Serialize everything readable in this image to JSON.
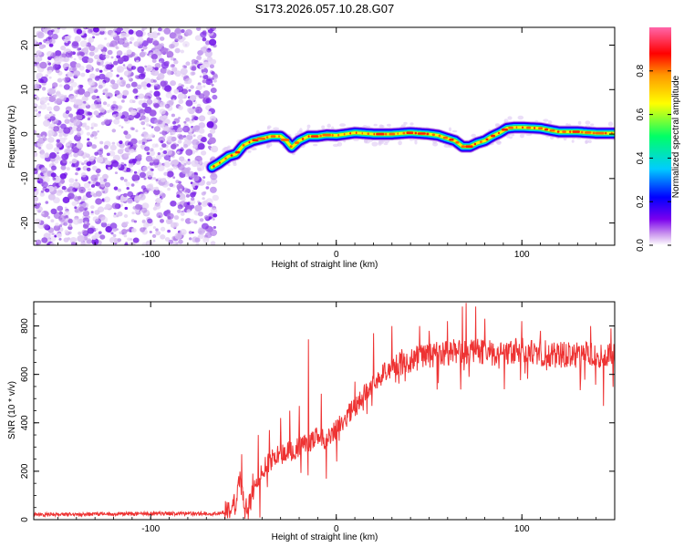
{
  "chart_data": [
    {
      "type": "heatmap",
      "title": "S173.2026.057.10.28.G07",
      "xlabel": "Height of straight line (km)",
      "ylabel": "Frequency (Hz)",
      "xlim": [
        -163,
        150
      ],
      "ylim": [
        -25,
        24
      ],
      "x_ticks": [
        -100,
        0,
        100
      ],
      "x_tick_labels": [
        "-100",
        "0",
        "100"
      ],
      "y_ticks": [
        -20,
        -10,
        0,
        10,
        20
      ],
      "y_tick_labels": [
        "-20",
        "-10",
        "0",
        "10",
        "20"
      ],
      "noise_region_x": [
        -163,
        -67
      ],
      "ridge": {
        "x": [
          -67,
          -63,
          -58,
          -54,
          -50,
          -45,
          -40,
          -35,
          -30,
          -27,
          -24,
          -20,
          -15,
          -10,
          -5,
          0,
          10,
          20,
          30,
          40,
          50,
          55,
          60,
          64,
          68,
          72,
          76,
          80,
          84,
          88,
          92,
          96,
          100,
          110,
          120,
          130,
          140,
          150
        ],
        "frequency": [
          -7.5,
          -6.5,
          -5.0,
          -4.5,
          -2.5,
          -1.5,
          -1.0,
          -0.5,
          -0.5,
          -1.5,
          -3.0,
          -1.5,
          -0.5,
          -0.5,
          -0.2,
          -0.3,
          0.3,
          0.0,
          0.0,
          0.3,
          0.0,
          -0.3,
          -1.0,
          -1.5,
          -2.8,
          -2.8,
          -2.0,
          -1.5,
          -0.5,
          0.3,
          1.3,
          1.5,
          1.5,
          1.3,
          0.5,
          0.5,
          0.2,
          0.2
        ]
      },
      "colorbar": {
        "label": "Normalized spectral amplitude",
        "range": [
          0.0,
          1.0
        ],
        "ticks": [
          "0.0",
          "0.2",
          "0.4",
          "0.6",
          "0.8"
        ],
        "colors": [
          "#ffffff",
          "#cc99ee",
          "#7a00ee",
          "#0000ff",
          "#00ccff",
          "#00ff66",
          "#ffff00",
          "#ff9900",
          "#ff0000",
          "#ff66aa"
        ]
      }
    },
    {
      "type": "line",
      "title": "",
      "xlabel": "Height of straight line (km)",
      "ylabel": "SNR (10 * v/v)",
      "xlim": [
        -163,
        150
      ],
      "ylim": [
        0,
        900
      ],
      "x_ticks": [
        -100,
        0,
        100
      ],
      "x_tick_labels": [
        "-100",
        "0",
        "100"
      ],
      "y_ticks": [
        0,
        200,
        400,
        600,
        800
      ],
      "y_tick_labels": [
        "0",
        "200",
        "400",
        "600",
        "800"
      ],
      "color": "#ee3333",
      "trend": {
        "x": [
          -163,
          -100,
          -65,
          -58,
          -54,
          -52,
          -50,
          -47,
          -44,
          -40,
          -35,
          -30,
          -25,
          -20,
          -15,
          -10,
          -5,
          0,
          5,
          10,
          15,
          20,
          25,
          30,
          40,
          50,
          60,
          70,
          80,
          90,
          100,
          110,
          120,
          130,
          140,
          150
        ],
        "y": [
          20,
          25,
          25,
          35,
          70,
          160,
          90,
          60,
          130,
          200,
          250,
          270,
          280,
          300,
          320,
          340,
          330,
          380,
          420,
          460,
          520,
          560,
          600,
          640,
          660,
          680,
          690,
          700,
          690,
          690,
          700,
          690,
          680,
          680,
          680,
          680
        ]
      },
      "spikes": [
        {
          "x": -51,
          "y": 270
        },
        {
          "x": -45,
          "y": 190
        },
        {
          "x": -42,
          "y": 350
        },
        {
          "x": -36,
          "y": 370
        },
        {
          "x": -30,
          "y": 420
        },
        {
          "x": -25,
          "y": 450
        },
        {
          "x": -20,
          "y": 470
        },
        {
          "x": -15,
          "y": 745
        },
        {
          "x": -8,
          "y": 520
        },
        {
          "x": 10,
          "y": 570
        },
        {
          "x": 20,
          "y": 770
        },
        {
          "x": 30,
          "y": 800
        },
        {
          "x": 45,
          "y": 800
        },
        {
          "x": 50,
          "y": 780
        },
        {
          "x": 60,
          "y": 820
        },
        {
          "x": 68,
          "y": 880
        },
        {
          "x": 70,
          "y": 895
        },
        {
          "x": 75,
          "y": 880
        },
        {
          "x": 80,
          "y": 830
        },
        {
          "x": 100,
          "y": 820
        },
        {
          "x": 110,
          "y": 780
        },
        {
          "x": 137,
          "y": 800
        },
        {
          "x": 144,
          "y": 470
        },
        {
          "x": 148,
          "y": 790
        }
      ]
    }
  ]
}
